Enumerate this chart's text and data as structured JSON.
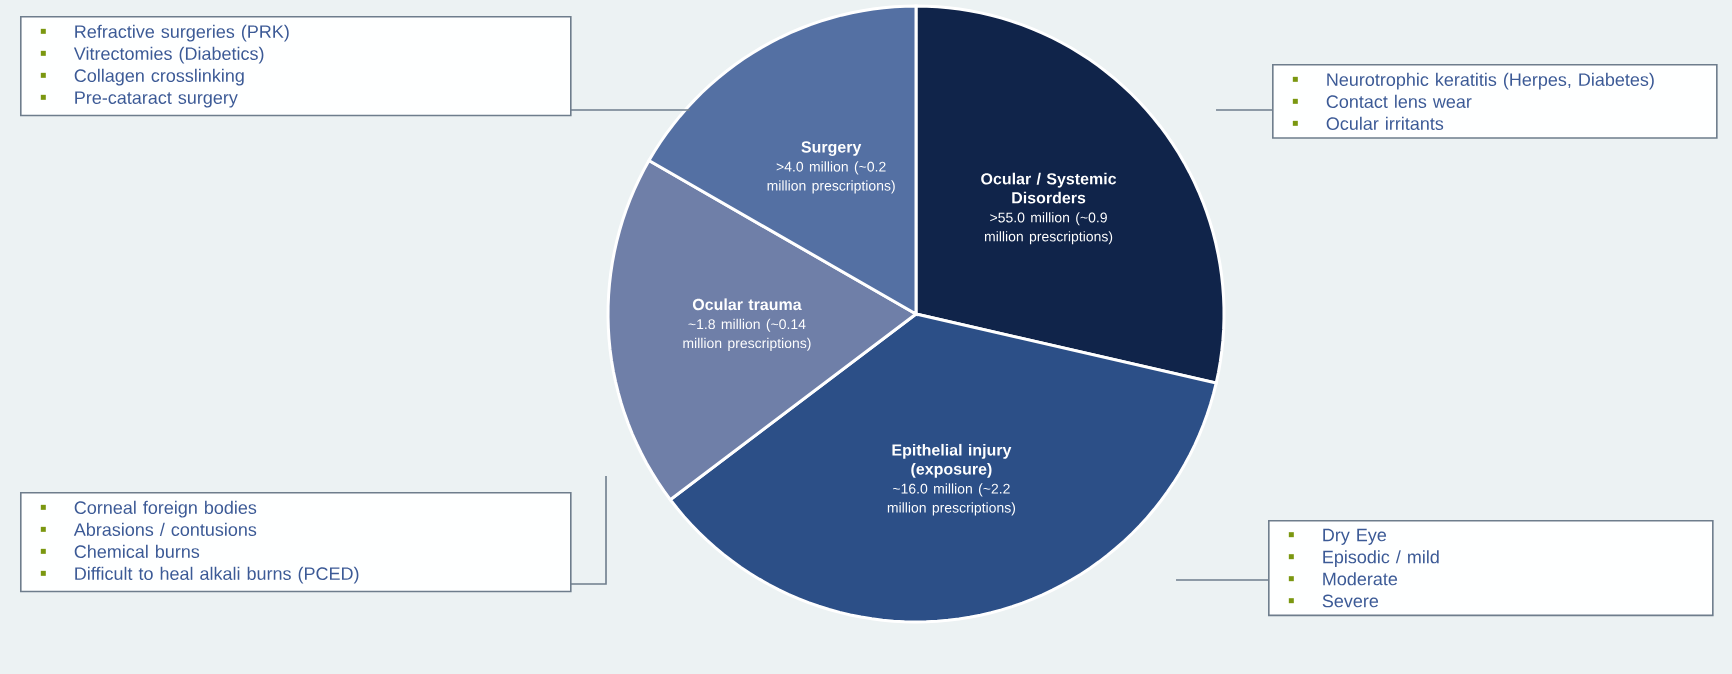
{
  "chart_data": {
    "type": "pie",
    "categories": [
      "Ocular / Systemic Disorders",
      "Epithelial injury (exposure)",
      "Ocular trauma",
      "Surgery"
    ],
    "values": [
      28.6,
      36.1,
      18.6,
      16.7
    ],
    "colors": [
      "#10244a",
      "#2c4f87",
      "#6f7fa8",
      "#5470a3"
    ],
    "value_labels": [
      ">55.0 million (~0.9 million prescriptions)",
      "~16.0 million (~2.2 million prescriptions)",
      "~1.8 million (~0.14 million prescriptions)",
      ">4.0 million (~0.2 million prescriptions)"
    ],
    "annotations": [
      {
        "text": "Neurotrophic keratitis (Herpes, Diabetes)",
        "x": "Ocular / Systemic Disorders"
      },
      {
        "text": "Contact lens wear",
        "x": "Ocular / Systemic Disorders"
      },
      {
        "text": "Ocular irritants",
        "x": "Ocular / Systemic Disorders"
      },
      {
        "text": "Dry Eye",
        "x": "Epithelial injury (exposure)"
      },
      {
        "text": "Episodic / mild",
        "x": "Epithelial injury (exposure)"
      },
      {
        "text": "Moderate",
        "x": "Epithelial injury (exposure)"
      },
      {
        "text": "Severe",
        "x": "Epithelial injury (exposure)"
      },
      {
        "text": "Corneal foreign bodies",
        "x": "Ocular trauma"
      },
      {
        "text": "Abrasions / contusions",
        "x": "Ocular trauma"
      },
      {
        "text": "Chemical burns",
        "x": "Ocular trauma"
      },
      {
        "text": "Difficult to heal alkali burns (PCED)",
        "x": "Ocular trauma"
      },
      {
        "text": "Refractive surgeries (PRK)",
        "x": "Surgery"
      },
      {
        "text": "Vitrectomies (Diabetics)",
        "x": "Surgery"
      },
      {
        "text": "Collagen crosslinking",
        "x": "Surgery"
      },
      {
        "text": "Pre-cataract surgery",
        "x": "Surgery"
      }
    ]
  }
}
